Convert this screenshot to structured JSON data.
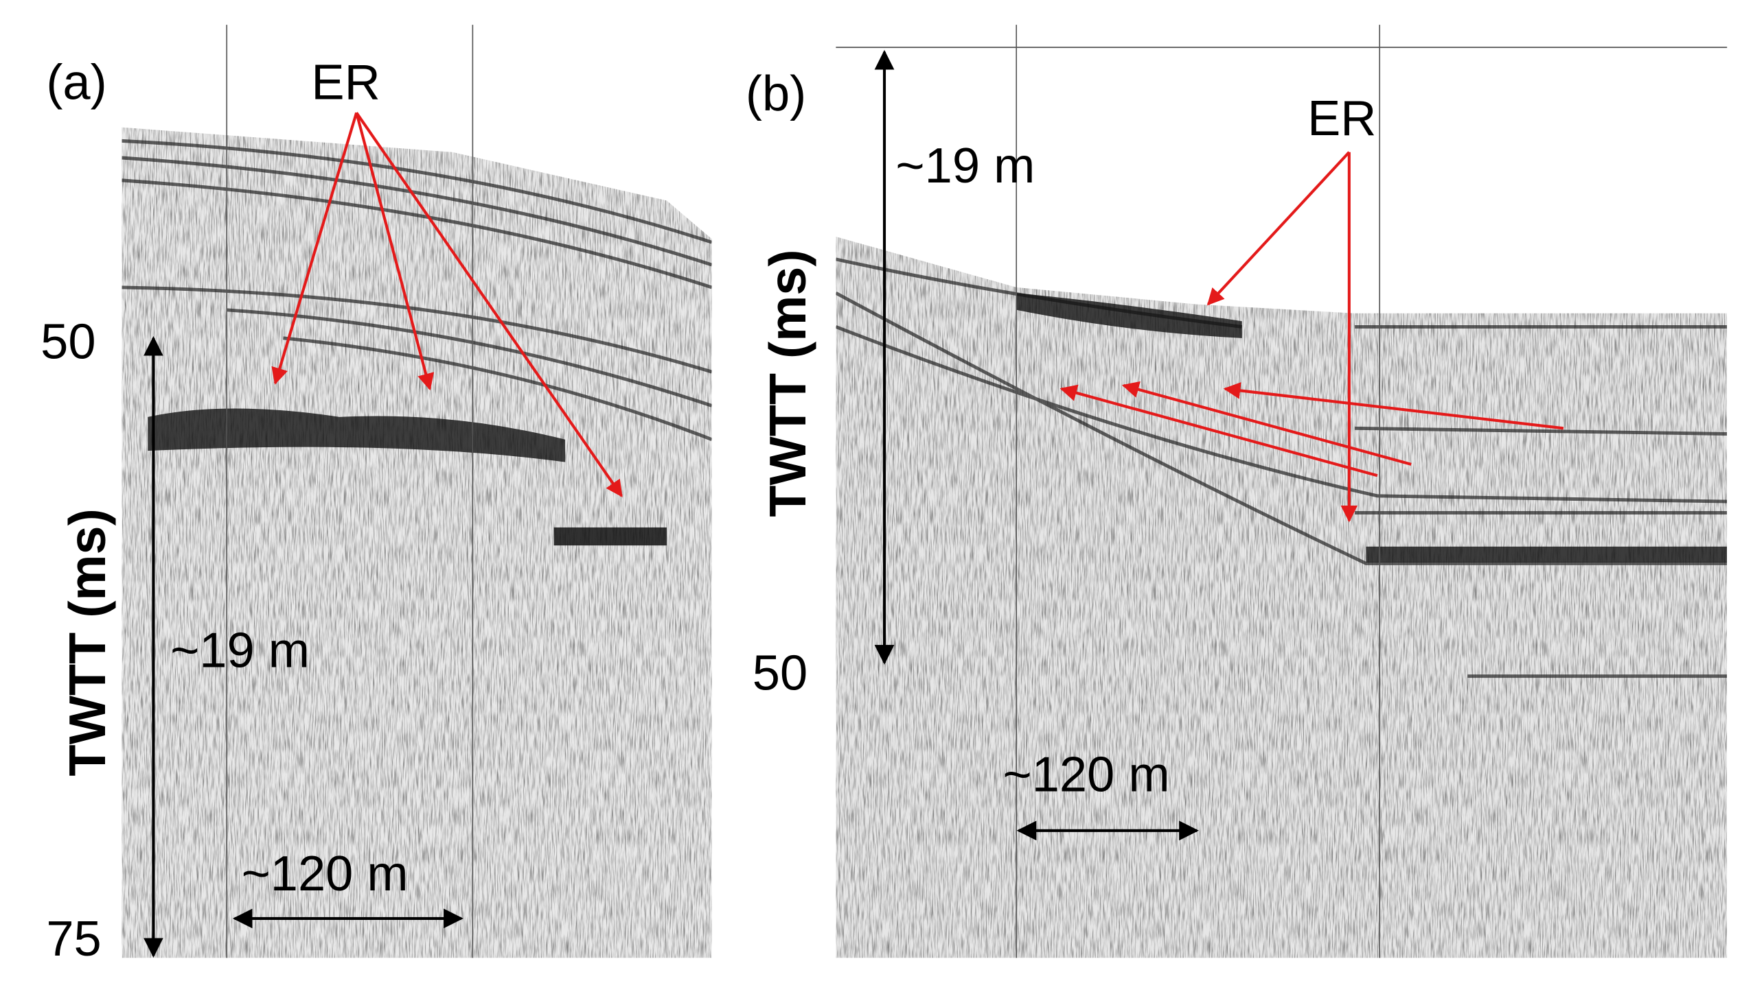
{
  "panels": [
    {
      "label": "(a)",
      "er_label": "ER",
      "ticks": [
        50,
        75
      ],
      "axis_label": "TWTT (ms)",
      "vertical_scale": "~19 m",
      "horizontal_scale": "~120 m"
    },
    {
      "label": "(b)",
      "er_label": "ER",
      "ticks": [
        50
      ],
      "axis_label": "TWTT (ms)",
      "vertical_scale": "~19 m",
      "horizontal_scale": "~120 m"
    }
  ]
}
